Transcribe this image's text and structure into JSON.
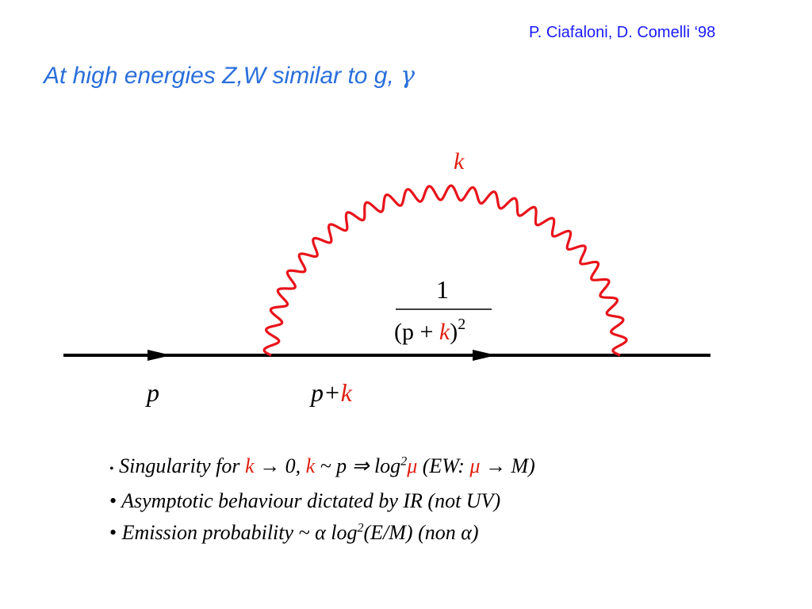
{
  "citation": "P. Ciafaloni, D. Comelli ‘98",
  "title": {
    "text": "At high energies Z,W similar to  g, ",
    "gamma": "γ"
  },
  "diagram": {
    "loop_label": "k",
    "propagator": {
      "numerator": "1",
      "open": "(p + ",
      "k": "k",
      "close": ")",
      "exponent": "2"
    },
    "incoming_label": "p",
    "internal_label_p": "p+",
    "internal_label_k": "k",
    "colors": {
      "line": "#000000",
      "boson": "#e8141b",
      "accent": "#e02010",
      "title": "#2a6fdb",
      "citation": "#1a1aff"
    }
  },
  "bullets": {
    "b1": {
      "bullet": "•",
      "t1": "Singularity for ",
      "k1": "k",
      "t2": " → 0, ",
      "k2": "k",
      "t3": " ~ p  ⇒   log",
      "sup": "2",
      "mu1": "μ",
      "t4": "  (EW: ",
      "mu2": "μ",
      "t5": " → M)"
    },
    "b2": {
      "bullet": "•",
      "text": " Asymptotic behaviour dictated by  IR (not UV)"
    },
    "b3": {
      "bullet": "•",
      "t1": " Emission probability ~   α log",
      "sup": "2",
      "t2": "(E/M)  (non α)"
    }
  }
}
